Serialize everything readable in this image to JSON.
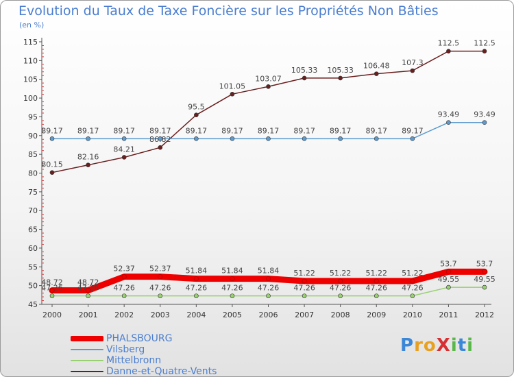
{
  "title": "Evolution du Taux de Taxe Foncière sur les Propriétés Non Bâties",
  "subtitle": "(en %)",
  "logo": {
    "text": "ProXiti",
    "letters": [
      {
        "ch": "P",
        "color": "#3a87d8"
      },
      {
        "ch": "r",
        "color": "#e8a020"
      },
      {
        "ch": "o",
        "color": "#e8a020"
      },
      {
        "ch": "X",
        "color": "#d83030"
      },
      {
        "ch": "i",
        "color": "#58b848"
      },
      {
        "ch": "t",
        "color": "#3a87d8"
      },
      {
        "ch": "i",
        "color": "#58b848"
      }
    ]
  },
  "chart_data": {
    "type": "line",
    "x": [
      "2000",
      "2001",
      "2002",
      "2003",
      "2004",
      "2005",
      "2006",
      "2007",
      "2008",
      "2009",
      "2010",
      "2011",
      "2012"
    ],
    "ylim": [
      45,
      115
    ],
    "yticks": [
      45,
      50,
      55,
      60,
      65,
      70,
      75,
      80,
      85,
      90,
      95,
      100,
      105,
      110,
      115
    ],
    "grid": false,
    "legend_position": "bottom-left",
    "series": [
      {
        "name": "Danne-et-Quatre-Vents",
        "color": "#6b1e1e",
        "labels": true,
        "values": [
          80.15,
          82.16,
          84.21,
          86.82,
          95.5,
          101.05,
          103.07,
          105.33,
          105.33,
          106.48,
          107.3,
          112.5,
          112.5
        ]
      },
      {
        "name": "Vilsberg",
        "color": "#5b9bd0",
        "labels": true,
        "values": [
          89.17,
          89.17,
          89.17,
          89.17,
          89.17,
          89.17,
          89.17,
          89.17,
          89.17,
          89.17,
          89.17,
          93.49,
          93.49
        ]
      },
      {
        "name": "Mittelbronn",
        "color": "#98d070",
        "labels": true,
        "values": [
          47.26,
          47.26,
          47.26,
          47.26,
          47.26,
          47.26,
          47.26,
          47.26,
          47.26,
          47.26,
          47.26,
          49.55,
          49.55
        ]
      },
      {
        "name": "PHALSBOURG",
        "color": "#ee0000",
        "labels": true,
        "highlight": true,
        "values": [
          48.72,
          48.72,
          52.37,
          52.37,
          51.84,
          51.84,
          51.84,
          51.22,
          51.22,
          51.22,
          51.22,
          53.7,
          53.7
        ]
      }
    ]
  },
  "legend": [
    {
      "name": "PHALSBOURG",
      "color": "#ee0000"
    },
    {
      "name": "Vilsberg",
      "color": "#5b9bd0"
    },
    {
      "name": "Mittelbronn",
      "color": "#98d070"
    },
    {
      "name": "Danne-et-Quatre-Vents",
      "color": "#6b1e1e"
    }
  ]
}
